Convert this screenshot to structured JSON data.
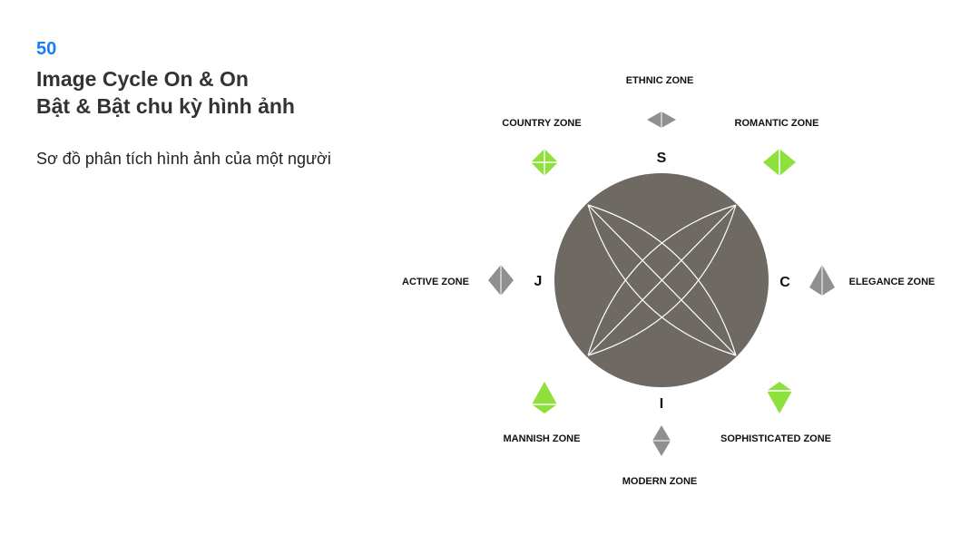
{
  "page": {
    "number": "50",
    "title_line1": "Image Cycle On & On",
    "title_line2": "Bật & Bật chu kỳ hình ảnh",
    "subtitle": "Sơ đồ phân tích hình ảnh của một người"
  },
  "diagram": {
    "axes": {
      "top": "S",
      "left": "J",
      "right": "C",
      "bottom": "I"
    },
    "zones": {
      "ethnic": "ETHNIC ZONE",
      "country": "COUNTRY ZONE",
      "romantic": "ROMANTIC ZONE",
      "active": "ACTIVE ZONE",
      "elegance": "ELEGANCE ZONE",
      "mannish": "MANNISH ZONE",
      "sophisticated": "SOPHISTICATED ZONE",
      "modern": "MODERN ZONE"
    },
    "colors": {
      "circle": "#6e6962",
      "green": "#8ee03c",
      "gray": "#8f8f8f",
      "lines": "#ffffff",
      "page_number": "#1a7ef0"
    }
  }
}
